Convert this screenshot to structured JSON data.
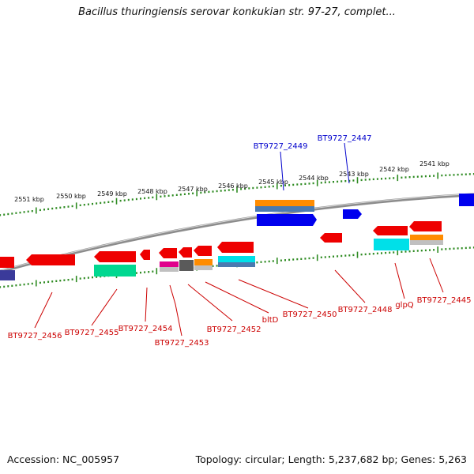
{
  "title": "Bacillus thuringiensis serovar konkukian str. 97-27, complet...",
  "footer": {
    "accession": "Accession: NC_005957",
    "summary": "Topology: circular; Length: 5,237,682 bp; Genes: 5,263"
  },
  "scale_labels": [
    "2551 kbp",
    "2550 kbp",
    "2549 kbp",
    "2548 kbp",
    "2547 kbp",
    "2546 kbp",
    "2545 kbp",
    "2544 kbp",
    "2543 kbp",
    "2542 kbp",
    "2541 kbp"
  ],
  "gene_labels": {
    "forward": [
      "BT9727_2449",
      "BT9727_2447"
    ],
    "reverse": [
      "BT9727_2456",
      "BT9727_2455",
      "BT9727_2454",
      "BT9727_2453",
      "BT9727_2452",
      "bltD",
      "BT9727_2450",
      "BT9727_2448",
      "glpQ",
      "BT9727_2445"
    ]
  },
  "colors": {
    "backbone": "#8c8c8c",
    "tick": "#2e8b22",
    "forward_label": "#0000cc",
    "reverse_label": "#cc0000",
    "gene_red": "#ee0000",
    "gene_blue": "#0000ee",
    "gene_orange": "#ff8c00",
    "gene_cyan": "#00e0e8",
    "gene_teal": "#00d890",
    "gene_magenta": "#e0008c",
    "gene_navy": "#3a3a9a",
    "gene_gray": "#5a5a5a",
    "gene_steel": "#4a7ab0",
    "gene_silver": "#c0c0c0"
  }
}
